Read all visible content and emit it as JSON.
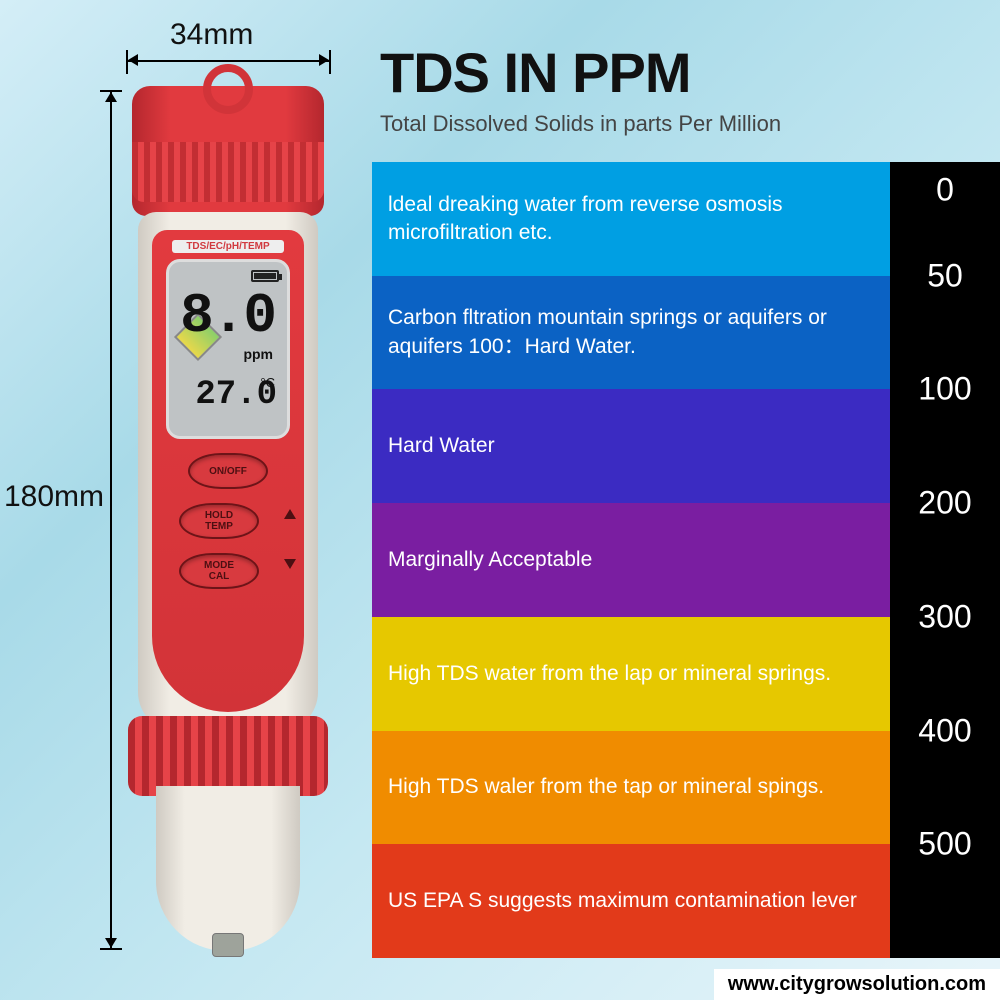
{
  "header": {
    "title": "TDS IN PPM",
    "subtitle": "Total Dissolved Solids in parts Per Million"
  },
  "dimensions": {
    "width": "34mm",
    "height": "180mm"
  },
  "device": {
    "lcd_label": "TDS/EC/pH/TEMP",
    "reading": "8.0",
    "unit": "ppm",
    "temp": "27.0",
    "temp_unit": "°C",
    "buttons": [
      {
        "label": "ON/OFF"
      },
      {
        "label": "HOLD\nTEMP"
      },
      {
        "label": "MODE\nCAL"
      }
    ]
  },
  "chart": {
    "type": "banded-scale",
    "scale_bg": "#000000",
    "scale_text": "#ffffff",
    "tick_fontsize": 32,
    "band_text": "#ffffff",
    "band_fontsize": 21,
    "ticks": [
      "0",
      "50",
      "100",
      "200",
      "300",
      "400",
      "500"
    ],
    "bands": [
      {
        "color": "#009fe3",
        "text": "ldeal dreaking water from reverse osmosis microfiltration etc."
      },
      {
        "color": "#0b62c4",
        "text": "Carbon fltration mountain springs or aquifers or aquifers 100：Hard Water."
      },
      {
        "color": "#3b2bc2",
        "text": "Hard Water"
      },
      {
        "color": "#7a1ea1",
        "text": "Marginally Acceptable"
      },
      {
        "color": "#e6c800",
        "text": "High TDS  water from the lap or mineral springs."
      },
      {
        "color": "#f08c00",
        "text": "High TDS waler from the tap or mineral spings."
      },
      {
        "color": "#e23a1a",
        "text": "US EPA S suggests maximum contamination lever"
      }
    ]
  },
  "footer": {
    "url": "www.citygrowsolution.com"
  }
}
